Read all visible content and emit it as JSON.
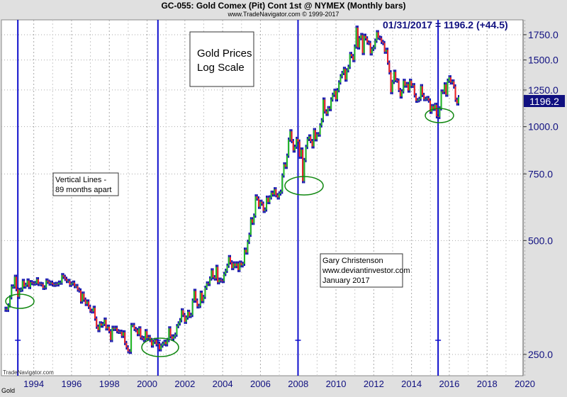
{
  "header": {
    "title": "GC-055:  Gold Comex (Pit) Cont 1st @ NYMEX  (Monthly bars)",
    "subtitle": "www.TradeNavigator.com © 1999-2017",
    "last_value": "01/31/2017 = 1196.2 (+44.5)",
    "footer_label": "Gold",
    "watermark": "TradeNavigator.com"
  },
  "annotations": {
    "box1": [
      "Gold Prices",
      "Log Scale"
    ],
    "box2": [
      "Vertical Lines -",
      "89 months apart"
    ],
    "box3": [
      "Gary Christenson",
      "www.deviantinvestor.com",
      "January 2017"
    ]
  },
  "colors": {
    "up": "#22bb22",
    "down": "#ee2222",
    "wick": "#1010aa",
    "vline": "#1010cc",
    "ellipse": "#118811",
    "axis_text": "#101080"
  },
  "chart_data": {
    "type": "bar",
    "scale": "log",
    "title": "GC-055:  Gold Comex (Pit) Cont 1st @ NYMEX  (Monthly bars)",
    "frequency": "monthly",
    "start": "1993-01",
    "end": "2017-01",
    "ylim": [
      240,
      1900
    ],
    "xlim": [
      1992.9,
      2020.6
    ],
    "y_ticks": [
      "250.0",
      "500.0",
      "750.0",
      "1000.0",
      "1250.0",
      "1500.0",
      "1750.0"
    ],
    "y_tick_values": [
      250,
      500,
      750,
      1000,
      1250,
      1500,
      1750
    ],
    "x_ticks": [
      "1994",
      "1996",
      "1998",
      "2000",
      "2002",
      "2004",
      "2006",
      "2008",
      "2010",
      "2012",
      "2014",
      "2016",
      "2018",
      "2020"
    ],
    "last_price_label": "1196.2",
    "grid": true,
    "vertical_lines": [
      "1993-09",
      "2001-02",
      "2008-07",
      "2015-12"
    ],
    "closes": [
      330,
      328,
      337,
      354,
      378,
      378,
      401,
      372,
      355,
      370,
      371,
      391,
      378,
      382,
      392,
      377,
      388,
      386,
      385,
      386,
      395,
      384,
      384,
      383,
      375,
      376,
      392,
      389,
      385,
      387,
      383,
      382,
      384,
      383,
      387,
      387,
      405,
      401,
      396,
      391,
      391,
      382,
      385,
      387,
      379,
      379,
      371,
      369,
      345,
      362,
      349,
      340,
      345,
      334,
      326,
      325,
      332,
      311,
      296,
      290,
      302,
      298,
      301,
      309,
      293,
      296,
      288,
      273,
      294,
      292,
      294,
      288,
      287,
      287,
      280,
      286,
      268,
      261,
      255,
      254,
      299,
      299,
      292,
      290,
      283,
      293,
      277,
      276,
      273,
      288,
      276,
      278,
      273,
      264,
      270,
      273,
      266,
      267,
      258,
      264,
      267,
      270,
      266,
      273,
      293,
      279,
      275,
      279,
      282,
      297,
      302,
      308,
      327,
      318,
      305,
      313,
      324,
      316,
      318,
      347,
      368,
      347,
      335,
      336,
      364,
      346,
      355,
      375,
      385,
      384,
      397,
      417,
      400,
      397,
      426,
      388,
      394,
      392,
      391,
      408,
      416,
      429,
      452,
      438,
      423,
      435,
      428,
      435,
      418,
      437,
      430,
      434,
      473,
      465,
      496,
      518,
      569,
      557,
      582,
      654,
      646,
      614,
      633,
      626,
      599,
      604,
      649,
      632,
      650,
      669,
      662,
      683,
      659,
      650,
      666,
      673,
      743,
      795,
      783,
      838,
      924,
      972,
      916,
      865,
      885,
      928,
      913,
      833,
      870,
      718,
      816,
      884,
      928,
      942,
      916,
      887,
      979,
      926,
      955,
      953,
      1008,
      1040,
      1179,
      1097,
      1081,
      1119,
      1113,
      1180,
      1214,
      1244,
      1181,
      1248,
      1309,
      1359,
      1386,
      1421,
      1332,
      1409,
      1439,
      1556,
      1536,
      1500,
      1628,
      1826,
      1620,
      1714,
      1746,
      1566,
      1738,
      1711,
      1669,
      1664,
      1562,
      1604,
      1622,
      1687,
      1776,
      1719,
      1714,
      1675,
      1663,
      1578,
      1596,
      1476,
      1392,
      1234,
      1313,
      1396,
      1327,
      1323,
      1250,
      1202,
      1240,
      1321,
      1284,
      1296,
      1246,
      1322,
      1282,
      1287,
      1210,
      1171,
      1175,
      1184,
      1279,
      1213,
      1183,
      1184,
      1190,
      1172,
      1095,
      1133,
      1115,
      1142,
      1065,
      1061,
      1118,
      1238,
      1235,
      1293,
      1215,
      1322,
      1350,
      1309,
      1316,
      1277,
      1178,
      1152,
      1196.2
    ]
  }
}
